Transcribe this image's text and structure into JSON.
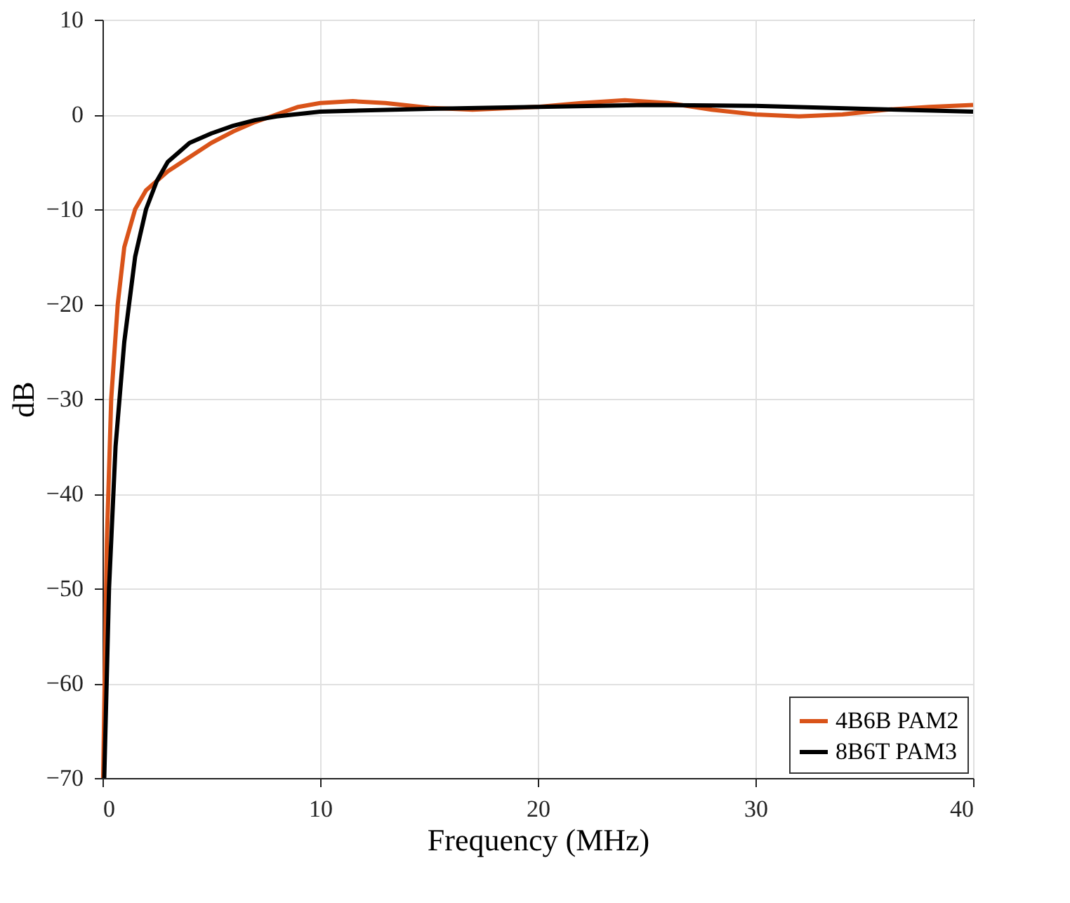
{
  "chart_data": {
    "type": "line",
    "xlabel": "Frequency (MHz)",
    "ylabel": "dB",
    "xlim": [
      0,
      40
    ],
    "xticks": [
      0,
      10,
      20,
      30,
      40
    ],
    "ylim": [
      -70,
      10
    ],
    "yticks": [
      -70,
      -60,
      -50,
      -40,
      -30,
      -20,
      -10,
      0,
      10
    ],
    "grid": true,
    "legend": "bottom right",
    "line_style": "solid",
    "series": [
      {
        "name": "4B6B PAM2",
        "color": "#d95319",
        "x": [
          0.03,
          0.2,
          0.4,
          0.7,
          1.0,
          1.5,
          2,
          3,
          4,
          5,
          6,
          7,
          8,
          9,
          10,
          11.5,
          13,
          15,
          17,
          20,
          22,
          24,
          26,
          28,
          30,
          32,
          34,
          36,
          38,
          40
        ],
        "values": [
          -70,
          -45,
          -30,
          -20,
          -14,
          -10,
          -8,
          -6,
          -4.5,
          -3,
          -1.8,
          -0.8,
          0,
          0.8,
          1.2,
          1.4,
          1.2,
          0.7,
          0.5,
          0.8,
          1.2,
          1.5,
          1.2,
          0.5,
          0,
          -0.2,
          0,
          0.5,
          0.8,
          1.0
        ]
      },
      {
        "name": "8B6T PAM3",
        "color": "#000000",
        "x": [
          0.08,
          0.3,
          0.6,
          1,
          1.5,
          2,
          2.5,
          3,
          4,
          5,
          6,
          7,
          8,
          10,
          15,
          20,
          25,
          30,
          35,
          40
        ],
        "values": [
          -70,
          -50,
          -35,
          -24,
          -15,
          -10,
          -7,
          -5,
          -3,
          -2,
          -1.2,
          -0.6,
          -0.2,
          0.3,
          0.6,
          0.8,
          1.0,
          0.9,
          0.6,
          0.3
        ]
      }
    ]
  }
}
